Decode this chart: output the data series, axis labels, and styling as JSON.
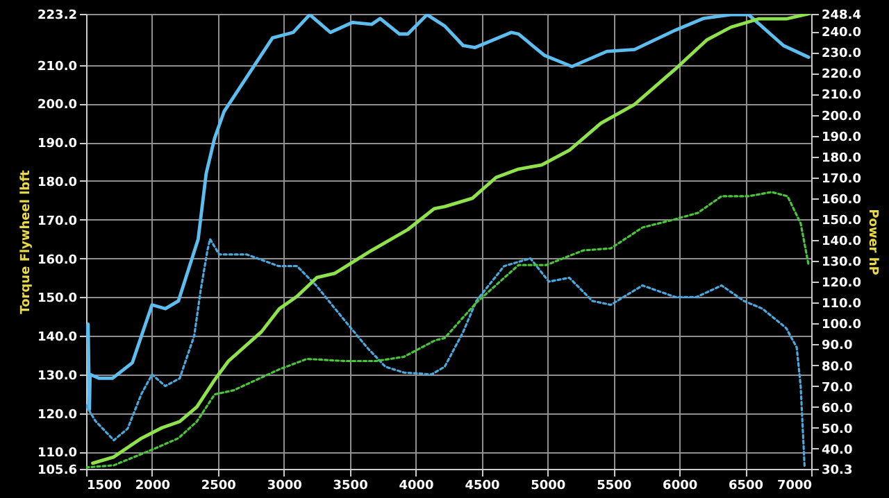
{
  "chart_data": {
    "type": "line",
    "ylabel": "Torque Flywheel lbft",
    "y2label": "Power hP",
    "xlim": [
      1500,
      7000
    ],
    "xticks": [
      1500,
      2000,
      2500,
      3000,
      3500,
      4000,
      4500,
      5000,
      5500,
      6000,
      6500,
      7000
    ],
    "ylim": [
      105.6,
      223.2
    ],
    "yticks": [
      105.6,
      {
        "value": 110,
        "label": "110.0"
      },
      {
        "value": 120,
        "label": "120.0"
      },
      {
        "value": 130,
        "label": "130.0"
      },
      {
        "value": 140,
        "label": "140.0"
      },
      {
        "value": 150,
        "label": "150.0"
      },
      {
        "value": 160,
        "label": "160.0"
      },
      {
        "value": 170,
        "label": "170.0"
      },
      {
        "value": 180,
        "label": "180.0"
      },
      {
        "value": 190,
        "label": "190.0"
      },
      {
        "value": 200,
        "label": "200.0"
      },
      {
        "value": 210,
        "label": "210.0"
      },
      223.2
    ],
    "y2lim": [
      30.3,
      248.4
    ],
    "y2ticks": [
      30.3,
      {
        "value": 40,
        "label": "40.0"
      },
      {
        "value": 50,
        "label": "50.0"
      },
      {
        "value": 60,
        "label": "60.0"
      },
      {
        "value": 70,
        "label": "70.0"
      },
      {
        "value": 80,
        "label": "80.0"
      },
      {
        "value": 90,
        "label": "90.0"
      },
      {
        "value": 100,
        "label": "100.0"
      },
      {
        "value": 110,
        "label": "110.0"
      },
      {
        "value": 120,
        "label": "120.0"
      },
      {
        "value": 130,
        "label": "130.0"
      },
      {
        "value": 140,
        "label": "140.0"
      },
      {
        "value": 150,
        "label": "150.0"
      },
      {
        "value": 160,
        "label": "160.0"
      },
      {
        "value": 170,
        "label": "170.0"
      },
      {
        "value": 180,
        "label": "180.0"
      },
      {
        "value": 190,
        "label": "190.0"
      },
      {
        "value": 200,
        "label": "200.0"
      },
      {
        "value": 210,
        "label": "210.0"
      },
      {
        "value": 220,
        "label": "220.0"
      },
      {
        "value": 230,
        "label": "230.0"
      },
      {
        "value": 240,
        "label": "240.0"
      },
      248.4
    ],
    "grid": true,
    "series": [
      {
        "color": "#5cbdee",
        "line_style": "solid",
        "x": [
          1500,
          1515,
          1525,
          1530,
          1600,
          1700,
          1850,
          2000,
          2100,
          2200,
          2350,
          2411,
          2474,
          2547,
          2914,
          3070,
          3196,
          3353,
          3521,
          3667,
          3730,
          3877,
          3940,
          4086,
          4222,
          4360,
          4450,
          4725,
          4780,
          4975,
          5185,
          5450,
          5660,
          5970,
          6180,
          6390,
          6525,
          6790,
          6980
        ],
        "values": [
          140,
          143,
          121,
          130,
          129,
          129,
          133,
          148,
          147,
          149,
          165,
          182,
          191,
          198,
          217,
          218.4,
          223,
          218.4,
          221,
          220.5,
          222,
          218,
          218,
          223,
          220,
          215,
          214.5,
          218.4,
          218,
          212.5,
          209.6,
          213.5,
          214,
          219,
          222,
          223,
          223,
          215,
          212
        ]
      },
      {
        "color": "#4aa8dc",
        "line_style": "dotted",
        "x": [
          1500,
          1570,
          1710,
          1815,
          1920,
          2000,
          2100,
          2210,
          2320,
          2370,
          2420,
          2440,
          2510,
          2720,
          2960,
          3100,
          3245,
          3460,
          3630,
          3770,
          3910,
          4120,
          4220,
          4360,
          4460,
          4670,
          4870,
          5010,
          5165,
          5340,
          5480,
          5720,
          5970,
          6130,
          6320,
          6490,
          6630,
          6810,
          6890,
          6920,
          6950
        ],
        "values": [
          122,
          118,
          113,
          116,
          125,
          130,
          127,
          129,
          140,
          152,
          162,
          165,
          161,
          161,
          158,
          158,
          153,
          144,
          137,
          132,
          130.5,
          130,
          132,
          141,
          149,
          158,
          160,
          154,
          155,
          149,
          148,
          153,
          150,
          150,
          153,
          149,
          147,
          142,
          137,
          127,
          106
        ]
      },
      {
        "color": "#90e24c",
        "line_style": "solid",
        "axis": "y2",
        "x": [
          1550,
          1710,
          1920,
          2075,
          2210,
          2340,
          2475,
          2580,
          2830,
          2965,
          3100,
          3250,
          3385,
          3665,
          3940,
          4140,
          4220,
          4430,
          4610,
          4780,
          4955,
          5165,
          5405,
          5660,
          5970,
          6210,
          6390,
          6600,
          6810,
          6980
        ],
        "values": [
          33,
          36,
          45,
          50,
          53,
          60,
          73,
          82,
          96,
          107,
          113,
          122,
          124,
          135,
          145,
          155,
          156,
          160,
          170,
          174,
          176,
          183,
          196,
          205,
          222,
          236,
          242,
          246,
          246,
          248.4
        ]
      },
      {
        "color": "#4cc43a",
        "line_style": "dotted",
        "axis": "y2",
        "x": [
          1500,
          1710,
          2020,
          2200,
          2340,
          2475,
          2620,
          2965,
          3175,
          3460,
          3700,
          3910,
          4150,
          4220,
          4460,
          4780,
          4990,
          5270,
          5480,
          5720,
          5970,
          6140,
          6320,
          6525,
          6700,
          6820,
          6920,
          6980
        ],
        "values": [
          31,
          32,
          40,
          45,
          53,
          66,
          68,
          78,
          83,
          82,
          82,
          84,
          92,
          93,
          110,
          128,
          128,
          135,
          136,
          146,
          150,
          153,
          161,
          161,
          163,
          161,
          148,
          128
        ]
      }
    ]
  }
}
